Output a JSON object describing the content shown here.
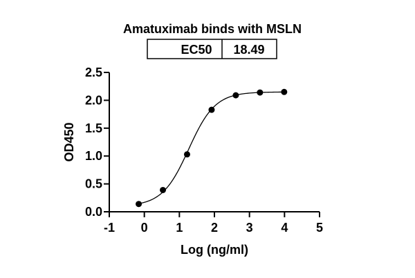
{
  "chart_data": {
    "type": "scatter",
    "title": "Amatuximab binds with MSLN",
    "ec50_table": {
      "label": "EC50",
      "value": "18.49"
    },
    "xlabel": "Log (ng/ml)",
    "ylabel": "OD450",
    "xlim": [
      -1,
      5
    ],
    "ylim": [
      0,
      2.5
    ],
    "xticks": [
      "-1",
      "0",
      "1",
      "2",
      "3",
      "4",
      "5"
    ],
    "yticks": [
      "0.0",
      "0.5",
      "1.0",
      "1.5",
      "2.0",
      "2.5"
    ],
    "grid": false,
    "series": [
      {
        "marker": "circle",
        "color": "#000000",
        "x": [
          -0.16,
          0.53,
          1.22,
          1.92,
          2.61,
          3.3,
          3.99
        ],
        "y": [
          0.14,
          0.39,
          1.03,
          1.83,
          2.09,
          2.14,
          2.15
        ]
      }
    ],
    "fit": {
      "type": "sigmoidal-4PL",
      "bottom": 0.1,
      "top": 2.15,
      "logEC50": 1.267,
      "hill": 1.15
    }
  }
}
